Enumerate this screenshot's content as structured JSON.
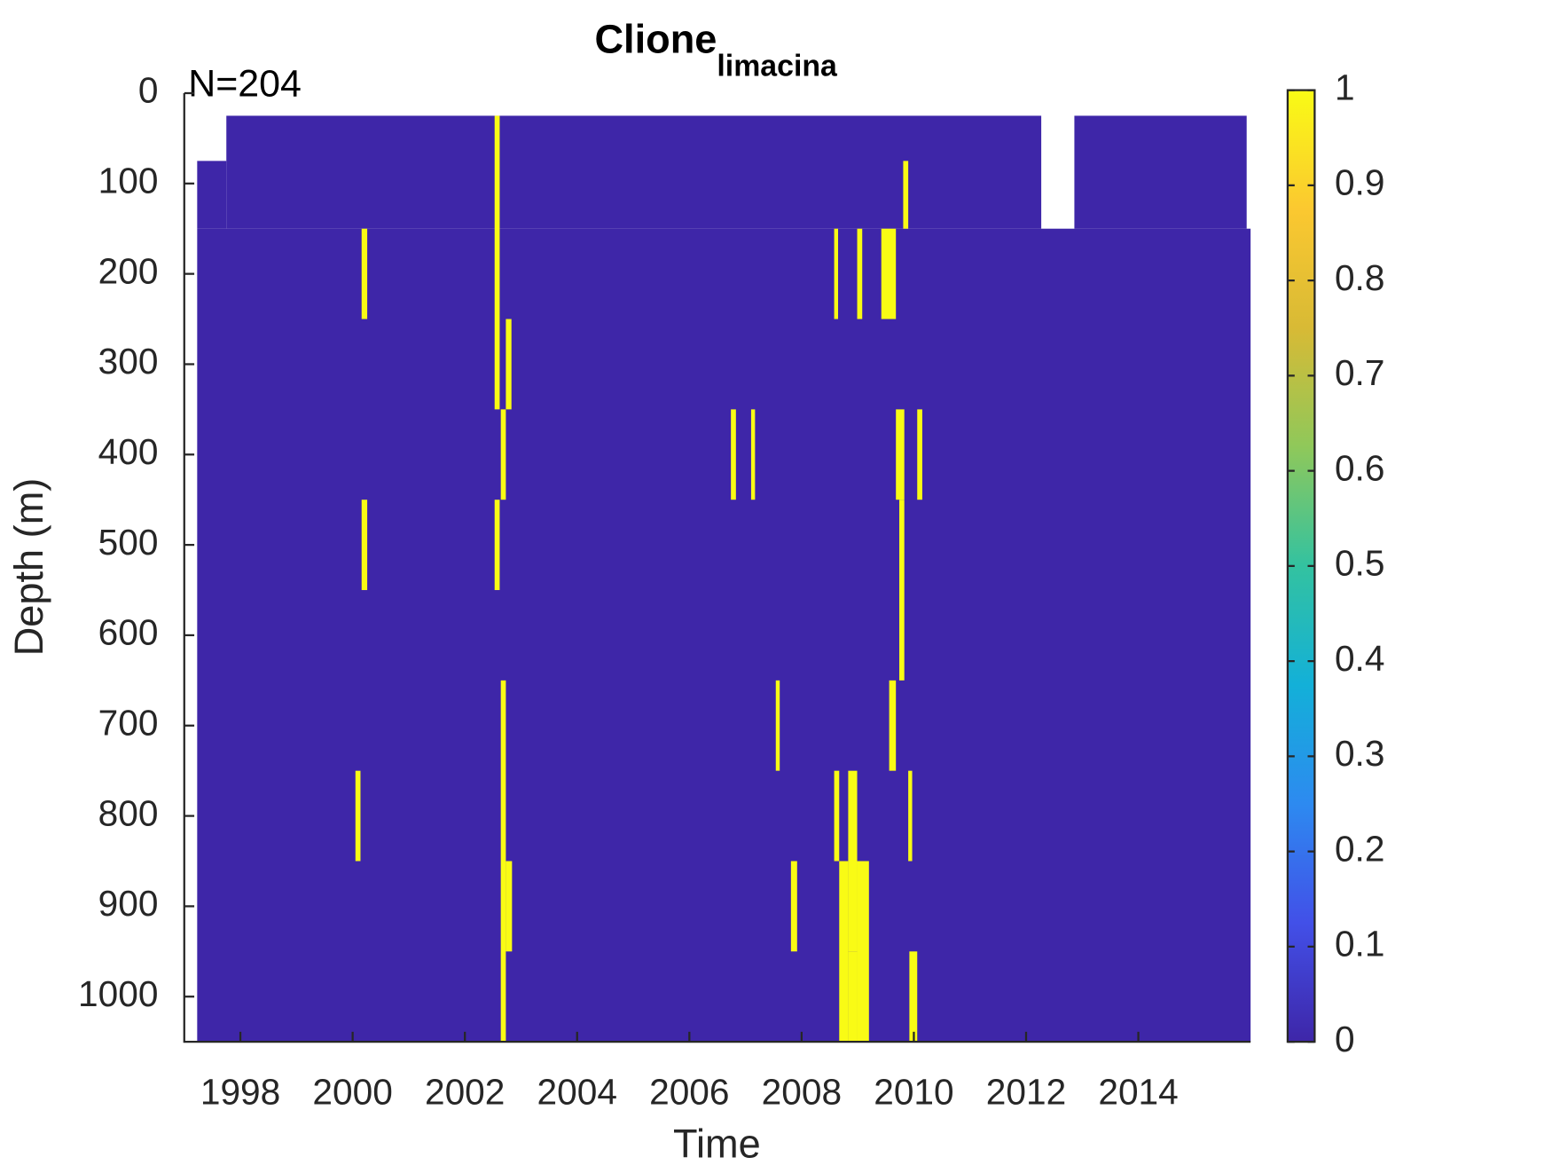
{
  "chart_data": {
    "type": "heatmap",
    "title": "Clione",
    "title_subscript": "limacina",
    "annotation": "N=204",
    "xlabel": "Time",
    "ylabel": "Depth (m)",
    "xlim": [
      1997,
      2016
    ],
    "xticks": [
      1998,
      2000,
      2002,
      2004,
      2006,
      2008,
      2010,
      2012,
      2014
    ],
    "ylim": [
      0,
      1050
    ],
    "yticks": [
      0,
      100,
      200,
      300,
      400,
      500,
      600,
      700,
      800,
      900,
      1000
    ],
    "clim": [
      0,
      1
    ],
    "cticks": [
      0,
      0.1,
      0.2,
      0.3,
      0.4,
      0.5,
      0.6,
      0.7,
      0.8,
      0.9,
      1
    ],
    "colormap": [
      "#3e26a8",
      "#4250e8",
      "#2d8af0",
      "#13b0d8",
      "#33c2a0",
      "#8fc85a",
      "#d8ba35",
      "#fbc830",
      "#f9fb15"
    ],
    "cells": [
      {
        "t": [
          1997.23,
          2016
        ],
        "depth": [
          150,
          1050
        ],
        "value": 0
      },
      {
        "t": [
          1997.23,
          1997.75
        ],
        "depth": [
          75,
          150
        ],
        "value": 0
      },
      {
        "t": [
          1997.75,
          2012.27
        ],
        "depth": [
          25,
          150
        ],
        "value": 0
      },
      {
        "t": [
          2012.27,
          2012.86
        ],
        "depth": [
          150,
          150
        ],
        "value": 0
      },
      {
        "t": [
          2012.86,
          2015.93
        ],
        "depth": [
          25,
          150
        ],
        "value": 0
      },
      {
        "t": [
          2002.53,
          2002.62
        ],
        "depth": [
          25,
          350
        ],
        "value": 1
      },
      {
        "t": [
          2002.53,
          2002.62
        ],
        "depth": [
          450,
          550
        ],
        "value": 1
      },
      {
        "t": [
          2002.64,
          2002.73
        ],
        "depth": [
          350,
          450
        ],
        "value": 1
      },
      {
        "t": [
          2002.64,
          2002.73
        ],
        "depth": [
          650,
          1050
        ],
        "value": 1
      },
      {
        "t": [
          2002.73,
          2002.83
        ],
        "depth": [
          250,
          350
        ],
        "value": 1
      },
      {
        "t": [
          2002.73,
          2002.84
        ],
        "depth": [
          850,
          950
        ],
        "value": 1
      },
      {
        "t": [
          2000.16,
          2000.26
        ],
        "depth": [
          150,
          250
        ],
        "value": 1
      },
      {
        "t": [
          2000.16,
          2000.26
        ],
        "depth": [
          450,
          550
        ],
        "value": 1
      },
      {
        "t": [
          2000.05,
          2000.14
        ],
        "depth": [
          750,
          850
        ],
        "value": 1
      },
      {
        "t": [
          2009.81,
          2009.9
        ],
        "depth": [
          75,
          150
        ],
        "value": 1
      },
      {
        "t": [
          2008.58,
          2008.65
        ],
        "depth": [
          150,
          250
        ],
        "value": 1
      },
      {
        "t": [
          2008.99,
          2009.08
        ],
        "depth": [
          150,
          250
        ],
        "value": 1
      },
      {
        "t": [
          2009.42,
          2009.68
        ],
        "depth": [
          150,
          250
        ],
        "value": 1
      },
      {
        "t": [
          2006.74,
          2006.83
        ],
        "depth": [
          350,
          450
        ],
        "value": 1
      },
      {
        "t": [
          2007.1,
          2007.17
        ],
        "depth": [
          350,
          450
        ],
        "value": 1
      },
      {
        "t": [
          2009.68,
          2009.83
        ],
        "depth": [
          350,
          450
        ],
        "value": 1
      },
      {
        "t": [
          2010.06,
          2010.15
        ],
        "depth": [
          350,
          450
        ],
        "value": 1
      },
      {
        "t": [
          2009.74,
          2009.83
        ],
        "depth": [
          450,
          650
        ],
        "value": 1
      },
      {
        "t": [
          2007.54,
          2007.61
        ],
        "depth": [
          650,
          750
        ],
        "value": 1
      },
      {
        "t": [
          2009.56,
          2009.68
        ],
        "depth": [
          650,
          750
        ],
        "value": 1
      },
      {
        "t": [
          2008.58,
          2008.67
        ],
        "depth": [
          750,
          850
        ],
        "value": 1
      },
      {
        "t": [
          2008.83,
          2008.99
        ],
        "depth": [
          750,
          950
        ],
        "value": 1
      },
      {
        "t": [
          2009.9,
          2009.97
        ],
        "depth": [
          750,
          850
        ],
        "value": 1
      },
      {
        "t": [
          2007.81,
          2007.92
        ],
        "depth": [
          850,
          950
        ],
        "value": 1
      },
      {
        "t": [
          2008.67,
          2008.83
        ],
        "depth": [
          850,
          1050
        ],
        "value": 1
      },
      {
        "t": [
          2008.99,
          2009.2
        ],
        "depth": [
          850,
          1050
        ],
        "value": 1
      },
      {
        "t": [
          2008.83,
          2008.99
        ],
        "depth": [
          950,
          1050
        ],
        "value": 1
      },
      {
        "t": [
          2009.92,
          2010.06
        ],
        "depth": [
          950,
          1050
        ],
        "value": 1
      }
    ]
  }
}
